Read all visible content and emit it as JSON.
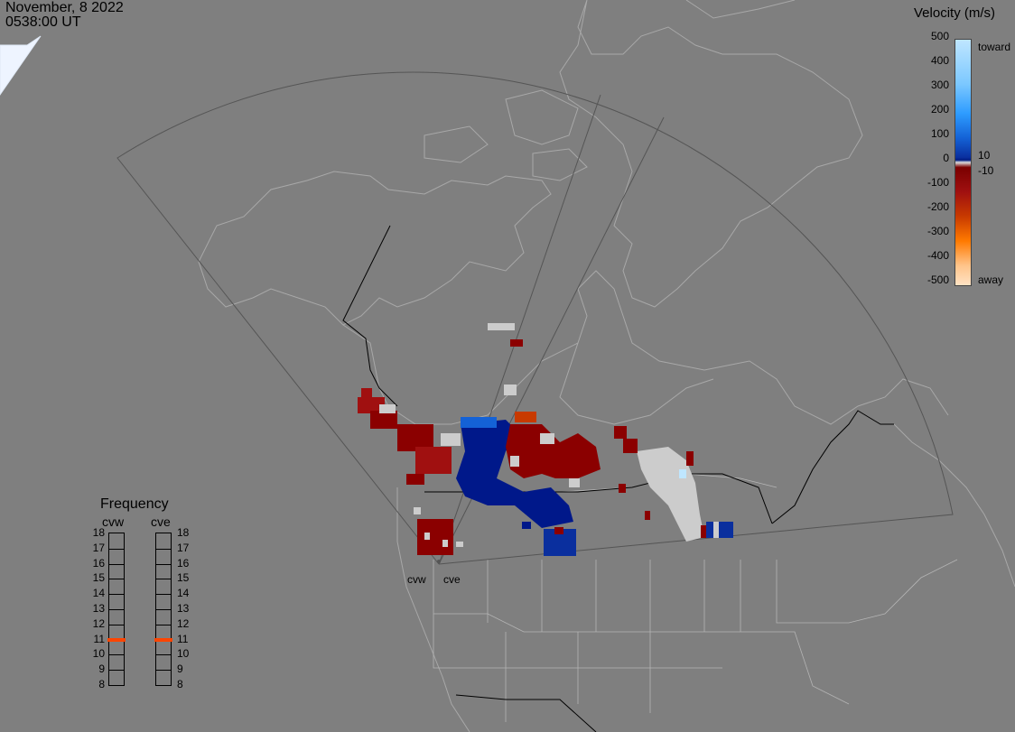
{
  "timestamp": {
    "date": "November, 8 2022",
    "time": "0538:00 UT"
  },
  "colorbar": {
    "title": "Velocity (m/s)",
    "ticks": [
      "500",
      "400",
      "300",
      "200",
      "100",
      "0",
      "-100",
      "-200",
      "-300",
      "-400",
      "-500"
    ],
    "inner_labels": [
      "10",
      "-10"
    ],
    "toward_label": "toward",
    "away_label": "away",
    "colors_toward": [
      "#bfe6ff",
      "#7cc8ff",
      "#2e9cff",
      "#1462d6",
      "#0a2f9e",
      "#001a80"
    ],
    "colors_away": [
      "#7a0000",
      "#a01010",
      "#c83a00",
      "#ff7a00",
      "#ffc48a",
      "#ffe2c4"
    ]
  },
  "frequency_panel": {
    "title": "Frequency",
    "radars": [
      "cvw",
      "cve"
    ],
    "levels": [
      "18",
      "17",
      "16",
      "15",
      "14",
      "13",
      "12",
      "11",
      "10",
      "9",
      "8"
    ],
    "selected": {
      "cvw": 11,
      "cve": 11
    },
    "marker_color": "#ff4500"
  },
  "radar_labels": [
    "cvw",
    "cve"
  ],
  "colors": {
    "background": "#7f7f7f",
    "coast": "#a8a8a8",
    "border": "#000000",
    "fov": "#555555",
    "ground_scatter": "#cccccc"
  }
}
